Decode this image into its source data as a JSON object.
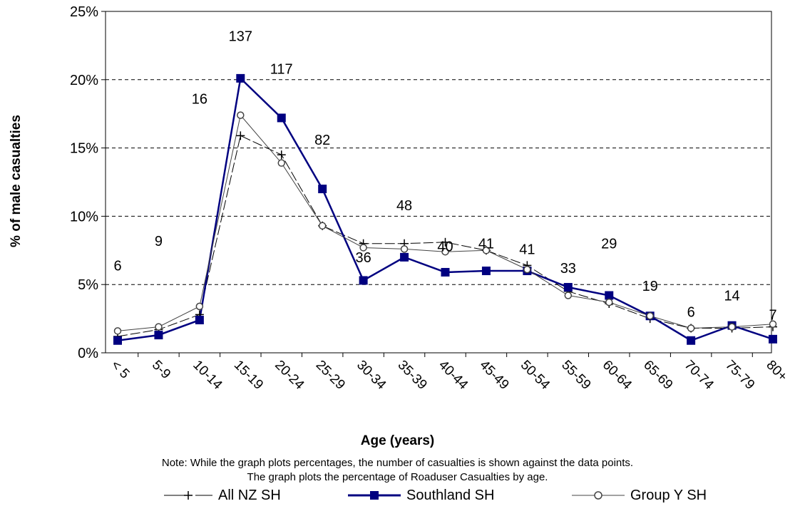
{
  "chart_data": {
    "type": "line",
    "ylabel": "% of male casualties",
    "xlabel": "Age (years)",
    "ylim": [
      0,
      25
    ],
    "yticks": [
      "0%",
      "5%",
      "10%",
      "15%",
      "20%",
      "25%"
    ],
    "grid": "horizontal dashed",
    "categories": [
      "< 5",
      "5-9",
      "10-14",
      "15-19",
      "20-24",
      "25-29",
      "30-34",
      "35-39",
      "40-44",
      "45-49",
      "50-54",
      "55-59",
      "60-64",
      "65-69",
      "70-74",
      "75-79",
      "80+"
    ],
    "series": [
      {
        "name": "All NZ SH",
        "marker": "plus",
        "color": "#000000",
        "values": [
          1.2,
          1.7,
          2.8,
          15.9,
          14.5,
          9.3,
          8.0,
          8.0,
          8.1,
          7.5,
          6.4,
          4.5,
          3.6,
          2.5,
          1.8,
          1.8,
          1.9
        ]
      },
      {
        "name": "Southland SH",
        "marker": "square",
        "color": "#000080",
        "values": [
          0.9,
          1.3,
          2.4,
          20.1,
          17.2,
          12.0,
          5.3,
          7.0,
          5.9,
          6.0,
          6.0,
          4.8,
          4.2,
          2.7,
          0.9,
          2.0,
          1.0
        ]
      },
      {
        "name": "Group Y SH",
        "marker": "circle",
        "color": "#444444",
        "values": [
          1.6,
          1.9,
          3.4,
          17.4,
          13.9,
          9.3,
          7.7,
          7.6,
          7.4,
          7.5,
          6.1,
          4.2,
          3.7,
          2.7,
          1.8,
          1.9,
          2.1
        ]
      }
    ],
    "data_labels": [
      "6",
      "9",
      "16",
      "137",
      "117",
      "82",
      "36",
      "48",
      "40",
      "41",
      "41",
      "33",
      "29",
      "19",
      "6",
      "14",
      "7"
    ],
    "data_label_positions": [
      6.4,
      8.2,
      18.6,
      23.2,
      20.8,
      15.6,
      7.0,
      10.8,
      7.8,
      8.0,
      7.6,
      6.2,
      8.0,
      4.9,
      3.0,
      4.2,
      2.8
    ]
  },
  "notes": {
    "line1": "Note: While the graph plots percentages, the number of casualties is shown against the  data points.",
    "line2": "The graph plots the percentage of Roaduser Casualties by age."
  },
  "legend": {
    "items": [
      {
        "label": "All NZ SH"
      },
      {
        "label": "Southland SH"
      },
      {
        "label": "Group Y SH"
      }
    ]
  }
}
